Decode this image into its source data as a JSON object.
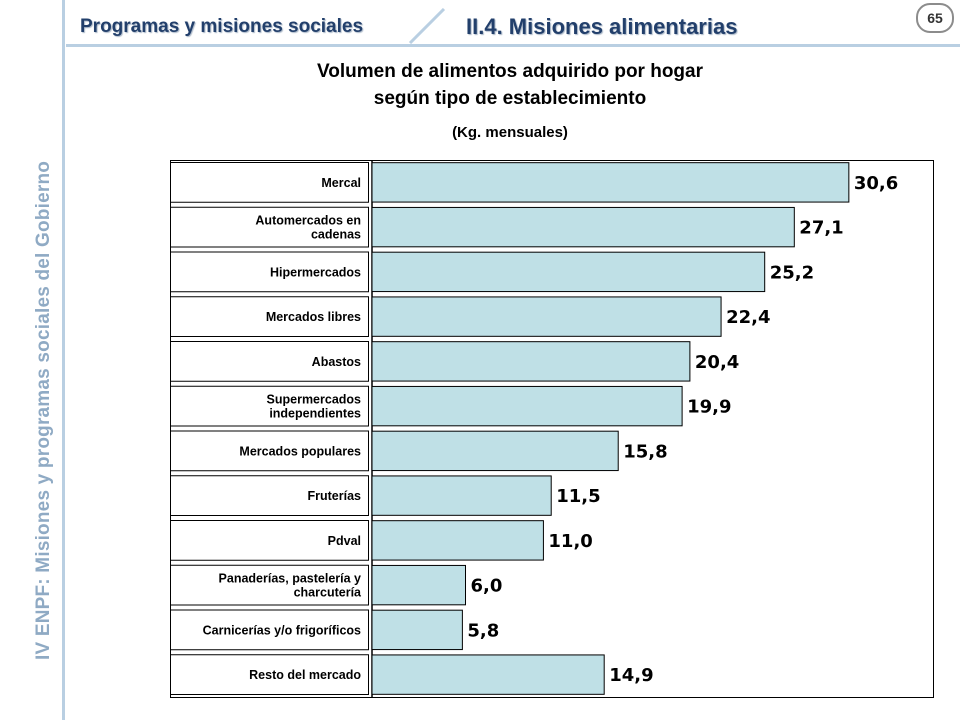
{
  "page": {
    "side_text": "IV ENPF:  Misiones y programas sociales del Gobierno",
    "header_left": "Programas y misiones sociales",
    "header_right": "II.4. Misiones alimentarias",
    "page_number": "65"
  },
  "colors": {
    "bar_fill": "#bfe0e6",
    "bar_stroke": "#000000",
    "header_text": "#223f6b",
    "side_text": "#8faac4",
    "rule": "#b9cfe2"
  },
  "chart_data": {
    "type": "bar",
    "orientation": "horizontal",
    "title": "Volumen de alimentos adquirido por hogar según tipo de establecimiento",
    "title_line1": "Volumen de alimentos adquirido por hogar",
    "title_line2": "según tipo de establecimiento",
    "subtitle": "(Kg. mensuales)",
    "xlim": [
      0,
      36
    ],
    "grid": false,
    "legend": "none",
    "categories": [
      [
        "Mercal"
      ],
      [
        "Automercados en",
        "cadenas"
      ],
      [
        "Hipermercados"
      ],
      [
        "Mercados libres"
      ],
      [
        "Abastos"
      ],
      [
        "Supermercados",
        "independientes"
      ],
      [
        "Mercados populares"
      ],
      [
        "Fruterías"
      ],
      [
        "Pdval"
      ],
      [
        "Panaderías, pastelería y",
        "charcutería"
      ],
      [
        "Carnicerías y/o frigoríficos"
      ],
      [
        "Resto del mercado"
      ]
    ],
    "values": [
      30.6,
      27.1,
      25.2,
      22.4,
      20.4,
      19.9,
      15.8,
      11.5,
      11.0,
      6.0,
      5.8,
      14.9
    ],
    "value_labels": [
      "30,6",
      "27,1",
      "25,2",
      "22,4",
      "20,4",
      "19,9",
      "15,8",
      "11,5",
      "11,0",
      "6,0",
      "5,8",
      "14,9"
    ]
  }
}
